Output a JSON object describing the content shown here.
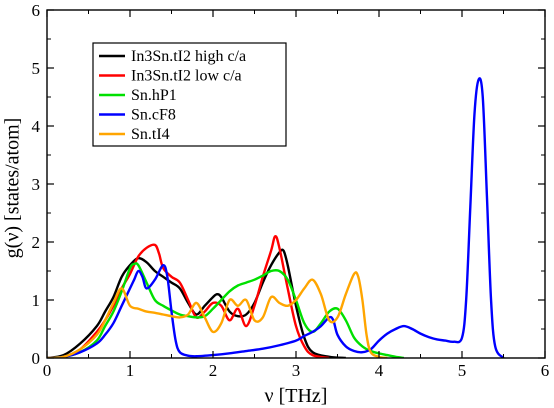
{
  "chart_data": {
    "type": "line",
    "xlabel": "ν  [THz]",
    "ylabel": "g(ν)  [states/atom]",
    "xlim": [
      0,
      6
    ],
    "ylim": [
      0,
      6
    ],
    "x_ticks": [
      0,
      1,
      2,
      3,
      4,
      5,
      6
    ],
    "y_ticks": [
      0,
      1,
      2,
      3,
      4,
      5,
      6
    ],
    "x_tick_labels": [
      "0",
      "1",
      "2",
      "3",
      "4",
      "5",
      "6"
    ],
    "y_tick_labels": [
      "0",
      "1",
      "2",
      "3",
      "4",
      "5",
      "6"
    ],
    "grid": false,
    "legend_position": "top-left",
    "series": [
      {
        "name": "In3Sn.tI2 high c/a",
        "color": "#000000",
        "x": [
          0,
          0.2,
          0.4,
          0.6,
          0.7,
          0.8,
          0.9,
          1.0,
          1.1,
          1.2,
          1.3,
          1.4,
          1.5,
          1.6,
          1.7,
          1.8,
          1.9,
          2.0,
          2.05,
          2.1,
          2.2,
          2.3,
          2.4,
          2.5,
          2.6,
          2.7,
          2.8,
          2.85,
          2.9,
          3.0,
          3.1,
          3.2,
          3.4,
          3.6
        ],
        "y": [
          0,
          0.05,
          0.25,
          0.55,
          0.8,
          1.05,
          1.4,
          1.6,
          1.72,
          1.65,
          1.5,
          1.4,
          1.3,
          1.2,
          0.95,
          0.75,
          0.9,
          1.05,
          1.1,
          1.05,
          0.8,
          0.72,
          0.75,
          0.95,
          1.3,
          1.6,
          1.82,
          1.85,
          1.6,
          0.9,
          0.35,
          0.1,
          0.02,
          0
        ]
      },
      {
        "name": "In3Sn.tI2 low c/a",
        "color": "#ff0000",
        "x": [
          0,
          0.2,
          0.4,
          0.6,
          0.7,
          0.8,
          0.9,
          1.0,
          1.1,
          1.2,
          1.3,
          1.35,
          1.4,
          1.5,
          1.6,
          1.7,
          1.8,
          1.9,
          2.0,
          2.1,
          2.2,
          2.3,
          2.4,
          2.5,
          2.6,
          2.7,
          2.75,
          2.8,
          2.9,
          3.0,
          3.1,
          3.2,
          3.4
        ],
        "y": [
          0,
          0.02,
          0.15,
          0.45,
          0.65,
          0.9,
          1.2,
          1.45,
          1.75,
          1.9,
          1.95,
          1.8,
          1.55,
          1.4,
          1.3,
          1.0,
          0.7,
          0.8,
          0.95,
          0.9,
          0.65,
          0.85,
          0.55,
          0.9,
          1.4,
          1.85,
          2.1,
          1.9,
          1.2,
          0.55,
          0.2,
          0.05,
          0
        ]
      },
      {
        "name": "Sn.hP1",
        "color": "#00e000",
        "x": [
          0,
          0.2,
          0.4,
          0.6,
          0.7,
          0.8,
          0.9,
          1.0,
          1.05,
          1.1,
          1.2,
          1.3,
          1.4,
          1.5,
          1.6,
          1.7,
          1.8,
          1.9,
          2.0,
          2.1,
          2.2,
          2.3,
          2.4,
          2.5,
          2.6,
          2.7,
          2.8,
          2.9,
          3.0,
          3.1,
          3.2,
          3.3,
          3.4,
          3.5,
          3.6,
          3.7,
          3.8,
          3.9,
          4.0,
          4.1,
          4.2,
          4.3
        ],
        "y": [
          0,
          0.02,
          0.1,
          0.3,
          0.55,
          0.8,
          1.15,
          1.55,
          1.62,
          1.6,
          1.3,
          1.0,
          0.9,
          0.82,
          0.75,
          0.72,
          0.7,
          0.72,
          0.85,
          1.0,
          1.15,
          1.25,
          1.3,
          1.35,
          1.42,
          1.5,
          1.5,
          1.35,
          1.0,
          0.6,
          0.45,
          0.6,
          0.8,
          0.85,
          0.65,
          0.35,
          0.2,
          0.12,
          0.08,
          0.05,
          0.02,
          0
        ]
      },
      {
        "name": "Sn.cF8",
        "color": "#0000ff",
        "x": [
          0,
          0.2,
          0.4,
          0.6,
          0.7,
          0.8,
          0.9,
          1.0,
          1.05,
          1.1,
          1.15,
          1.2,
          1.3,
          1.4,
          1.45,
          1.5,
          1.55,
          1.6,
          1.7,
          1.8,
          2.0,
          2.2,
          2.4,
          2.6,
          2.8,
          3.0,
          3.1,
          3.2,
          3.3,
          3.4,
          3.45,
          3.5,
          3.6,
          3.7,
          3.8,
          3.9,
          4.0,
          4.1,
          4.2,
          4.3,
          4.4,
          4.5,
          4.6,
          4.7,
          4.8,
          4.9,
          5.0,
          5.05,
          5.1,
          5.15,
          5.2,
          5.25,
          5.3,
          5.35,
          5.4,
          5.5
        ],
        "y": [
          0,
          0.02,
          0.1,
          0.25,
          0.4,
          0.6,
          0.9,
          1.2,
          1.35,
          1.5,
          1.4,
          1.2,
          1.35,
          1.6,
          1.4,
          0.8,
          0.3,
          0.1,
          0.04,
          0.03,
          0.05,
          0.08,
          0.12,
          0.16,
          0.22,
          0.3,
          0.38,
          0.45,
          0.55,
          0.7,
          0.65,
          0.4,
          0.2,
          0.12,
          0.1,
          0.15,
          0.3,
          0.42,
          0.5,
          0.55,
          0.5,
          0.42,
          0.36,
          0.32,
          0.3,
          0.28,
          0.35,
          1.0,
          2.6,
          4.2,
          4.8,
          4.5,
          2.8,
          1.0,
          0.2,
          0
        ]
      },
      {
        "name": "Sn.tI4",
        "color": "#ffa500",
        "x": [
          0,
          0.2,
          0.4,
          0.6,
          0.7,
          0.8,
          0.9,
          1.0,
          1.1,
          1.2,
          1.3,
          1.4,
          1.5,
          1.6,
          1.7,
          1.8,
          1.9,
          2.0,
          2.1,
          2.2,
          2.3,
          2.4,
          2.5,
          2.6,
          2.7,
          2.8,
          2.9,
          3.0,
          3.1,
          3.2,
          3.3,
          3.4,
          3.5,
          3.6,
          3.7,
          3.75,
          3.8,
          3.85,
          3.9,
          4.0,
          4.1
        ],
        "y": [
          0,
          0.02,
          0.15,
          0.4,
          0.65,
          0.95,
          1.2,
          0.9,
          0.85,
          0.8,
          0.78,
          0.75,
          0.72,
          0.7,
          0.75,
          0.95,
          0.7,
          0.45,
          0.6,
          1.0,
          0.9,
          1.0,
          0.65,
          0.7,
          1.05,
          0.95,
          0.9,
          1.0,
          1.2,
          1.35,
          1.1,
          0.65,
          0.7,
          1.1,
          1.45,
          1.4,
          1.0,
          0.4,
          0.1,
          0.02,
          0
        ]
      }
    ]
  }
}
